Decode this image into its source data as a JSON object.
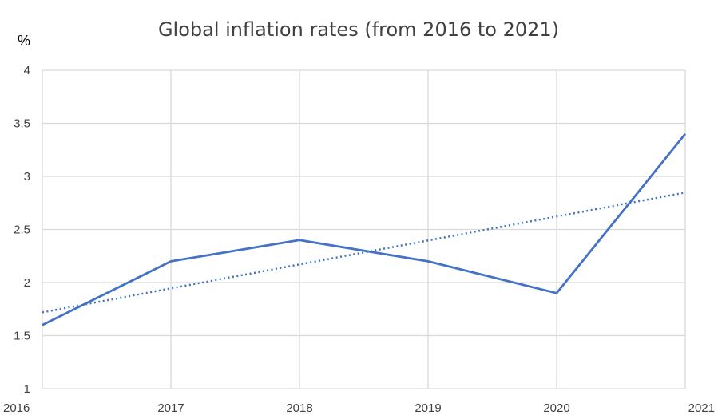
{
  "chart_data": {
    "type": "line",
    "title": "Global inflation rates (from 2016 to 2021)",
    "ylabel": "%",
    "xlabel": "",
    "x": [
      "2016",
      "2017",
      "2018",
      "2019",
      "2020",
      "2021"
    ],
    "ylim": [
      1,
      4
    ],
    "yticks": [
      "1",
      "1.5",
      "2",
      "2.5",
      "3",
      "3.5",
      "4"
    ],
    "series": [
      {
        "values": [
          1.6,
          2.2,
          2.4,
          2.2,
          1.9,
          3.4
        ],
        "color": "#4472c4"
      }
    ],
    "trendline": {
      "type": "linear",
      "style": "dotted",
      "color": "#4472c4"
    },
    "grid": true,
    "legend": "none"
  }
}
